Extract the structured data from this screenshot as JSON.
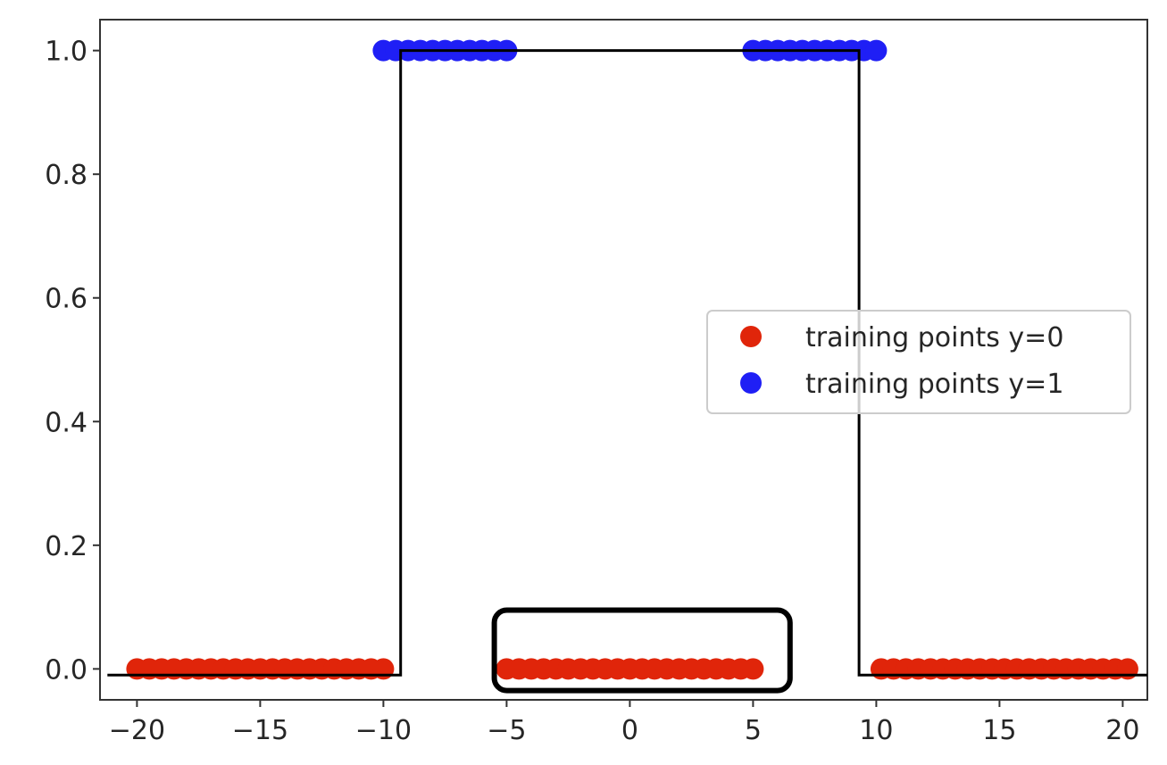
{
  "chart_data": {
    "type": "scatter",
    "title": "",
    "xlabel": "",
    "ylabel": "",
    "xlim": [
      -21.5,
      21
    ],
    "ylim": [
      -0.05,
      1.05
    ],
    "x_ticks": [
      -20,
      -15,
      -10,
      -5,
      0,
      5,
      10,
      15,
      20
    ],
    "x_tick_labels": [
      "−20",
      "−15",
      "−10",
      "−5",
      "0",
      "5",
      "10",
      "15",
      "20"
    ],
    "y_ticks": [
      0.0,
      0.2,
      0.4,
      0.6,
      0.8,
      1.0
    ],
    "y_tick_labels": [
      "0.0",
      "0.2",
      "0.4",
      "0.6",
      "0.8",
      "1.0"
    ],
    "grid": false,
    "legend_position": "center-right",
    "series": [
      {
        "name": "training points y=0",
        "color": "#e0250a",
        "x": [
          -20,
          -19.5,
          -19,
          -18.5,
          -18,
          -17.5,
          -17,
          -16.5,
          -16,
          -15.5,
          -15,
          -14.5,
          -14,
          -13.5,
          -13,
          -12.5,
          -12,
          -11.5,
          -11,
          -10.5,
          -10,
          -5,
          -4.5,
          -4,
          -3.5,
          -3,
          -2.5,
          -2,
          -1.5,
          -1,
          -0.5,
          0,
          0.5,
          1,
          1.5,
          2,
          2.5,
          3,
          3.5,
          4,
          4.5,
          5,
          10.2,
          10.7,
          11.2,
          11.7,
          12.2,
          12.7,
          13.2,
          13.7,
          14.2,
          14.7,
          15.2,
          15.7,
          16.2,
          16.7,
          17.2,
          17.7,
          18.2,
          18.7,
          19.2,
          19.7,
          20.2
        ],
        "y": [
          0,
          0,
          0,
          0,
          0,
          0,
          0,
          0,
          0,
          0,
          0,
          0,
          0,
          0,
          0,
          0,
          0,
          0,
          0,
          0,
          0,
          0,
          0,
          0,
          0,
          0,
          0,
          0,
          0,
          0,
          0,
          0,
          0,
          0,
          0,
          0,
          0,
          0,
          0,
          0,
          0,
          0,
          0,
          0,
          0,
          0,
          0,
          0,
          0,
          0,
          0,
          0,
          0,
          0,
          0,
          0,
          0,
          0,
          0,
          0,
          0,
          0,
          0
        ]
      },
      {
        "name": "training points y=1",
        "color": "#1f1ff5",
        "x": [
          -10,
          -9.5,
          -9,
          -8.5,
          -8,
          -7.5,
          -7,
          -6.5,
          -6,
          -5.5,
          -5,
          5,
          5.5,
          6,
          6.5,
          7,
          7.5,
          8,
          8.5,
          9,
          9.5,
          10
        ],
        "y": [
          1,
          1,
          1,
          1,
          1,
          1,
          1,
          1,
          1,
          1,
          1,
          1,
          1,
          1,
          1,
          1,
          1,
          1,
          1,
          1,
          1,
          1
        ]
      }
    ],
    "step_line": {
      "color": "#000000",
      "x": [
        -21.2,
        -9.3,
        -9.3,
        9.3,
        9.3,
        21.0
      ],
      "y": [
        -0.01,
        -0.01,
        1.0,
        1.0,
        -0.01,
        -0.01
      ]
    },
    "highlight_box": {
      "color": "#000000",
      "x_range": [
        -5.5,
        6.5
      ],
      "y_range": [
        -0.035,
        0.095
      ]
    }
  }
}
